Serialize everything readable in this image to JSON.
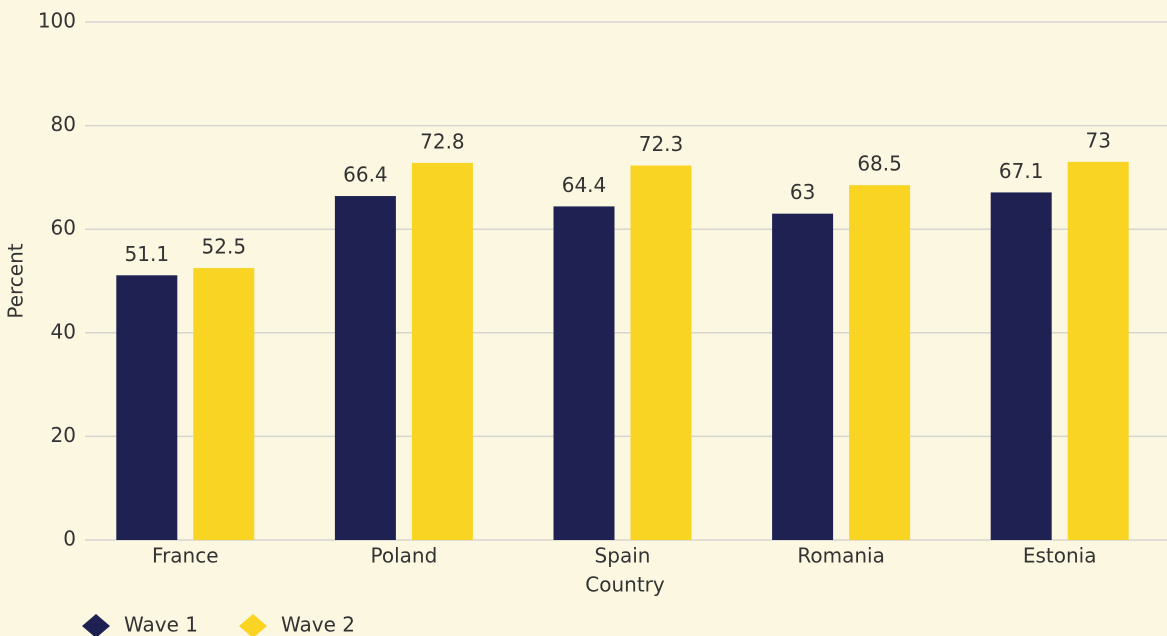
{
  "chart_data": {
    "type": "bar",
    "x_label": "Country",
    "y_label": "Percent",
    "categories": [
      "France",
      "Poland",
      "Spain",
      "Romania",
      "Estonia"
    ],
    "series": [
      {
        "name": "Wave 1",
        "color": "#1e2152",
        "values": [
          51.1,
          66.4,
          64.4,
          63,
          67.1
        ]
      },
      {
        "name": "Wave 2",
        "color": "#f9d423",
        "values": [
          52.5,
          72.8,
          72.3,
          68.5,
          73
        ]
      }
    ],
    "ylim": [
      0,
      100
    ],
    "yticks": [
      0,
      20,
      40,
      60,
      80,
      100
    ],
    "grid": true
  }
}
